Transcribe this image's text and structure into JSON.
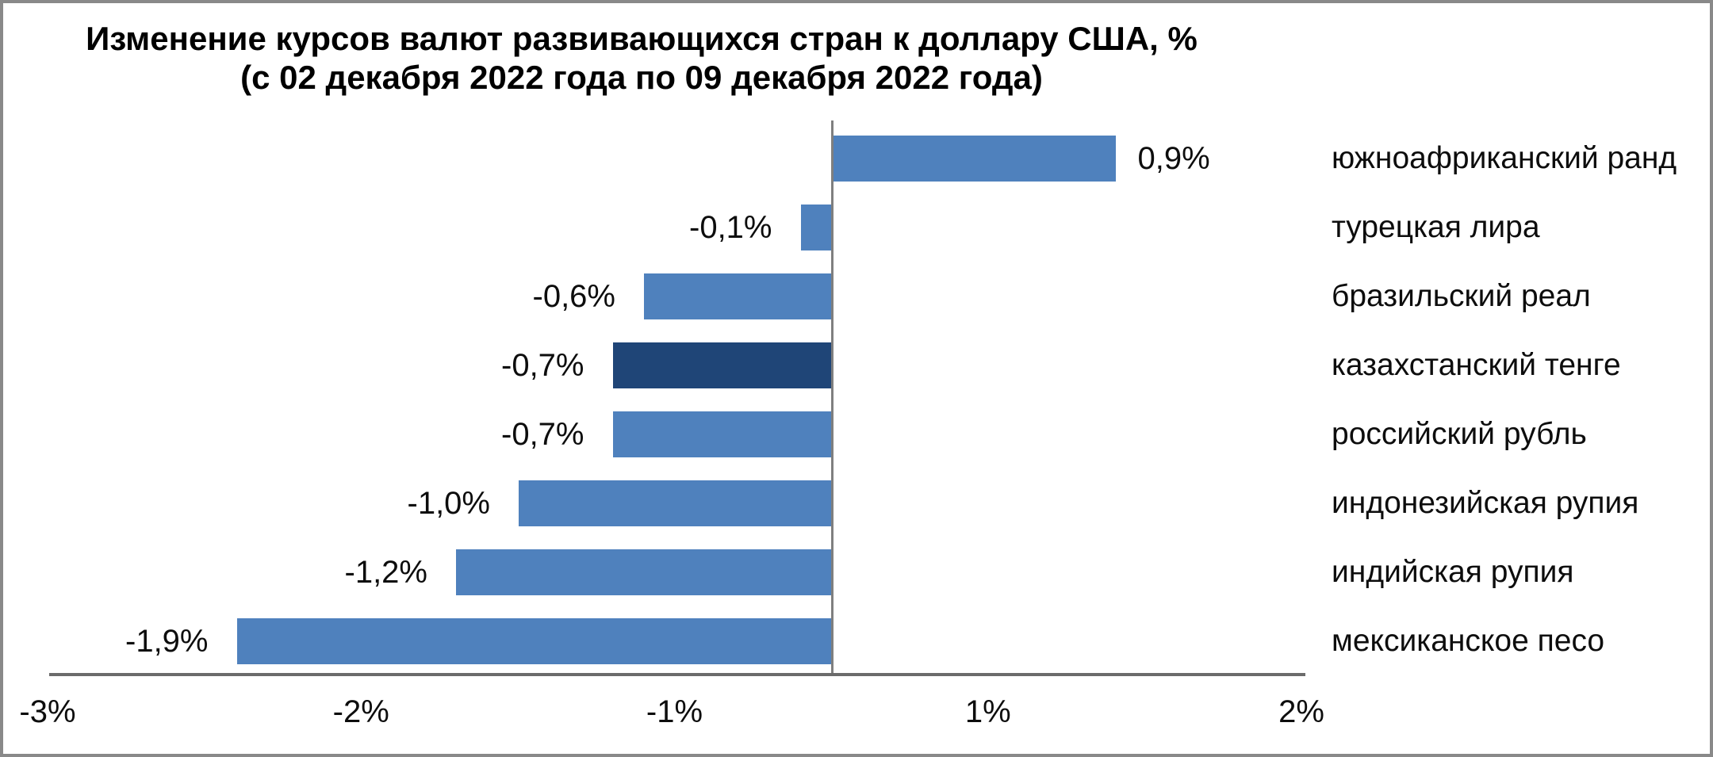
{
  "title": {
    "line1": "Изменение курсов валют развивающихся стран к доллару США, %",
    "line2": "(с 02 декабря 2022 года по 09 декабря 2022 года)"
  },
  "chart_data": {
    "type": "bar",
    "orientation": "horizontal",
    "title": "Изменение курсов валют развивающихся стран к доллару США, % (с 02 декабря 2022 года по 09 декабря 2022 года)",
    "categories": [
      "южноафриканский ранд",
      "турецкая лира",
      "бразильский реал",
      "казахстанский тенге",
      "российский рубль",
      "индонезийская рупия",
      "индийская рупия",
      "мексиканское песо"
    ],
    "values": [
      0.9,
      -0.1,
      -0.6,
      -0.7,
      -0.7,
      -1.0,
      -1.2,
      -1.9
    ],
    "value_labels": [
      "0,9%",
      "-0,1%",
      "-0,6%",
      "-0,7%",
      "-0,7%",
      "-1,0%",
      "-1,2%",
      "-1,9%"
    ],
    "unit": "%",
    "highlight_index": 3,
    "highlighted_category": "казахстанский тенге",
    "bar_color": "#4f81bd",
    "highlight_color": "#1f4577",
    "axis_color": "#6b6b6b",
    "x_tick_labels": [
      "-3%",
      "-2%",
      "-1%",
      "1%",
      "2%"
    ],
    "xlim": [
      -3,
      2
    ],
    "grid": false,
    "legend": false
  }
}
